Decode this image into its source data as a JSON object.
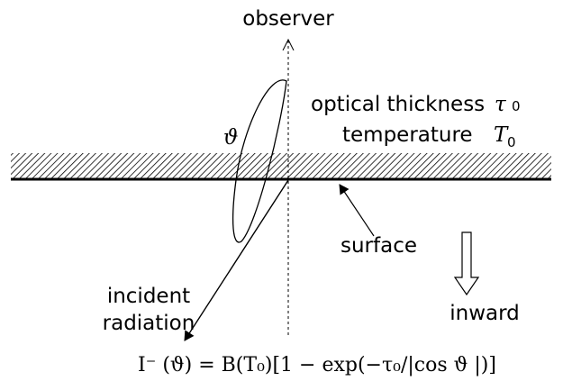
{
  "labels": {
    "observer": "observer",
    "optical_thickness": "optical thickness",
    "tau": "τ",
    "tau_sub": "0",
    "temperature": "temperature",
    "T": "T",
    "T_sub": "0",
    "angle": "ϑ",
    "surface": "surface",
    "incident_1": "incident",
    "incident_2": "radiation",
    "inward": "inward"
  },
  "formula": "I⁻ (ϑ) = B(T₀)[1 − exp(−τ₀/|cos ϑ |)]"
}
